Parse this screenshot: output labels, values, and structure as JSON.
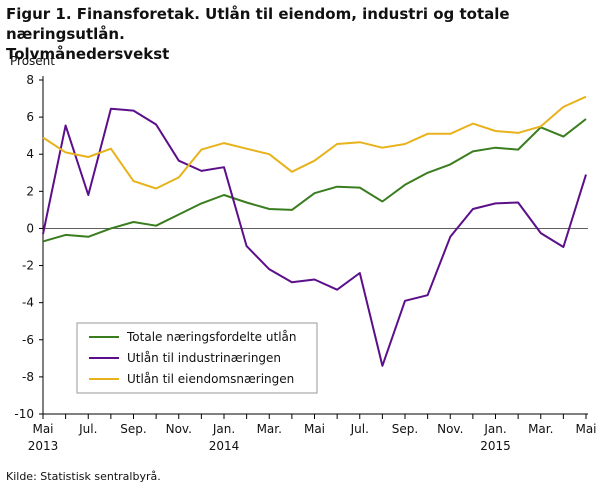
{
  "title_line1": "Figur 1. Finansforetak. Utlån til eiendom, industri og totale næringsutlån.",
  "title_line2": "Tolvmånedersvekst",
  "source": "Kilde: Statistisk sentralbyrå.",
  "chart_data": {
    "type": "line",
    "ylabel": "Prosent",
    "ylim": [
      -10,
      8
    ],
    "yticks": [
      8,
      6,
      4,
      2,
      0,
      -2,
      -4,
      -6,
      -8,
      -10
    ],
    "grid": false,
    "legend_placement": "bottom-left",
    "x_tick_labels": [
      {
        "i": 0,
        "label": "Mai",
        "year": "2013"
      },
      {
        "i": 2,
        "label": "Jul.",
        "year": ""
      },
      {
        "i": 4,
        "label": "Sep.",
        "year": ""
      },
      {
        "i": 6,
        "label": "Nov.",
        "year": ""
      },
      {
        "i": 8,
        "label": "Jan.",
        "year": "2014"
      },
      {
        "i": 10,
        "label": "Mar.",
        "year": ""
      },
      {
        "i": 12,
        "label": "Mai",
        "year": ""
      },
      {
        "i": 14,
        "label": "Jul.",
        "year": ""
      },
      {
        "i": 16,
        "label": "Sep.",
        "year": ""
      },
      {
        "i": 18,
        "label": "Nov.",
        "year": ""
      },
      {
        "i": 20,
        "label": "Jan.",
        "year": "2015"
      },
      {
        "i": 22,
        "label": "Mar.",
        "year": ""
      },
      {
        "i": 24,
        "label": "Mai",
        "year": ""
      }
    ],
    "series": [
      {
        "name": "Totale næringsfordelte utlån",
        "color": "#3a7d1f",
        "values": [
          -0.7,
          -0.35,
          -0.45,
          0.0,
          0.35,
          0.15,
          0.75,
          1.35,
          1.8,
          1.4,
          1.05,
          1.0,
          1.9,
          2.25,
          2.2,
          1.45,
          2.35,
          3.0,
          3.45,
          4.15,
          4.35,
          4.25,
          5.45,
          4.95,
          5.9
        ]
      },
      {
        "name": "Utlån til industrinæringen",
        "color": "#5b0f8a",
        "values": [
          -0.3,
          5.55,
          1.8,
          6.45,
          6.35,
          5.6,
          3.65,
          3.1,
          3.3,
          -0.95,
          -2.2,
          -2.9,
          -2.75,
          -3.3,
          -2.4,
          -7.4,
          -3.9,
          -3.6,
          -0.45,
          1.05,
          1.35,
          1.4,
          -0.25,
          -1.0,
          2.9
        ]
      },
      {
        "name": "Utlån til eiendomsnæringen",
        "color": "#e8b21b",
        "values": [
          4.9,
          4.1,
          3.85,
          4.3,
          2.55,
          2.15,
          2.75,
          4.25,
          4.6,
          4.3,
          4.0,
          3.05,
          3.65,
          4.55,
          4.65,
          4.35,
          4.55,
          5.1,
          5.1,
          5.65,
          5.25,
          5.15,
          5.5,
          6.55,
          7.1
        ]
      }
    ]
  }
}
